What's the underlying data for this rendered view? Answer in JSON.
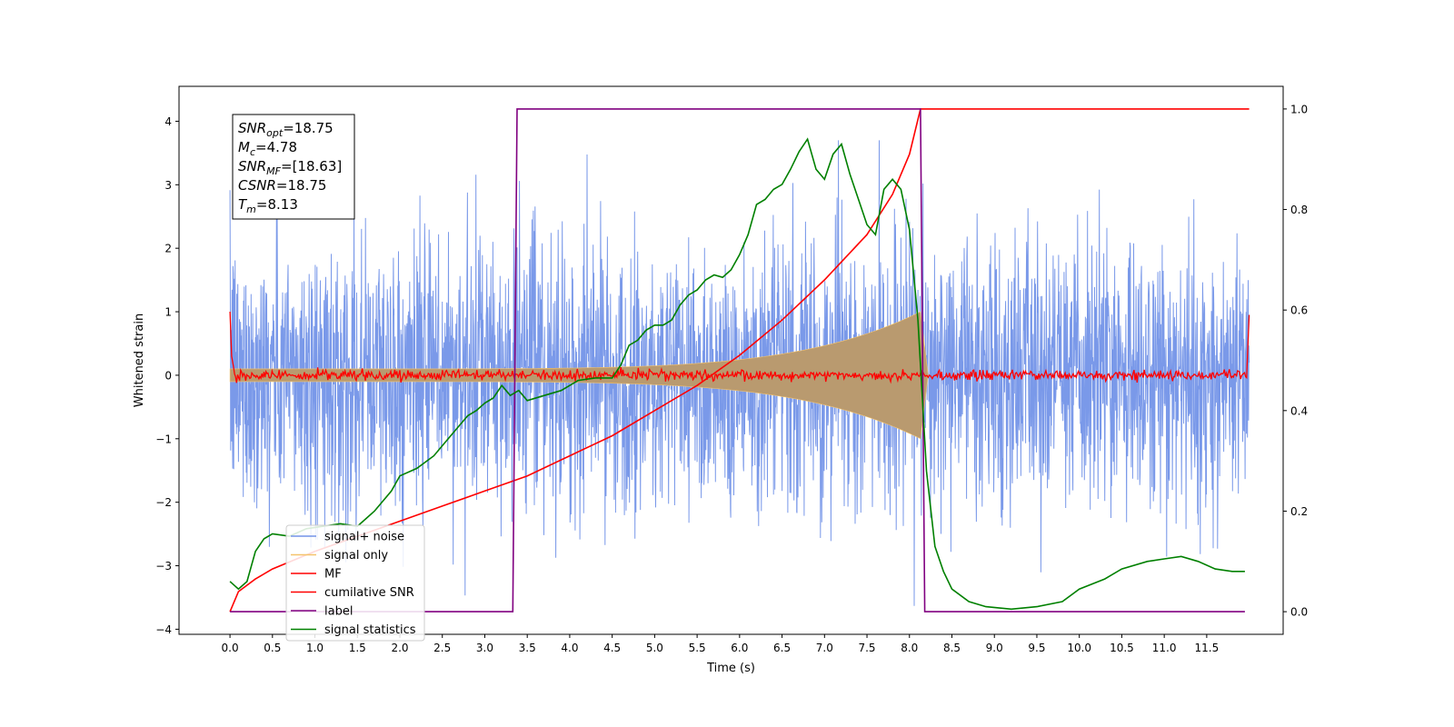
{
  "chart_data": {
    "type": "line",
    "title": "",
    "xlabel": "Time (s)",
    "ylabel": "Whitened strain",
    "xlim": [
      -0.6,
      12.4
    ],
    "ylim": [
      -4.08,
      4.55
    ],
    "y2lim": [
      -0.045,
      1.045
    ],
    "grid": false,
    "legend_position": "lower-left",
    "x_ticks": [
      0.0,
      0.5,
      1.0,
      1.5,
      2.0,
      2.5,
      3.0,
      3.5,
      4.0,
      4.5,
      5.0,
      5.5,
      6.0,
      6.5,
      7.0,
      7.5,
      8.0,
      8.5,
      9.0,
      9.5,
      10.0,
      10.5,
      11.0,
      11.5
    ],
    "x_tick_labels": [
      "0.0",
      "0.5",
      "1.0",
      "1.5",
      "2.0",
      "2.5",
      "3.0",
      "3.5",
      "4.0",
      "4.5",
      "5.0",
      "5.5",
      "6.0",
      "6.5",
      "7.0",
      "7.5",
      "8.0",
      "8.5",
      "9.0",
      "9.5",
      "10.0",
      "10.5",
      "11.0",
      "11.5"
    ],
    "y_ticks": [
      -4,
      -3,
      -2,
      -1,
      0,
      1,
      2,
      3,
      4
    ],
    "y_tick_labels": [
      "−4",
      "−3",
      "−2",
      "−1",
      "0",
      "1",
      "2",
      "3",
      "4"
    ],
    "y2_ticks": [
      0.0,
      0.2,
      0.4,
      0.6,
      0.8,
      1.0
    ],
    "y2_tick_labels": [
      "0.0",
      "0.2",
      "0.4",
      "0.6",
      "0.8",
      "1.0"
    ],
    "duration": 12.0,
    "merger_time": 8.13,
    "series": [
      {
        "name": "signal+ noise",
        "color": "#7393e8",
        "axis": "left",
        "values_summary": "dense whitened noise, roughly within ±2.5 with spikes reaching about ±3.7"
      },
      {
        "name": "signal only",
        "color": "#f5c36b",
        "axis": "left",
        "values_summary": "chirp envelope growing from about ±0.1 at 0 s to about ±1 near 8.1 s"
      },
      {
        "name": "MF",
        "color": "#ff0000",
        "axis": "left",
        "values_summary": "matched filter output near 0 (±0.1), edge values near 1.0 at 0 s and 12 s"
      },
      {
        "name": "cumilative SNR",
        "color": "#ff0000",
        "axis": "right",
        "x": [
          0.0,
          0.1,
          0.3,
          0.5,
          1.0,
          1.5,
          2.0,
          2.5,
          3.0,
          3.5,
          4.0,
          4.5,
          5.0,
          5.5,
          6.0,
          6.5,
          7.0,
          7.5,
          7.8,
          8.0,
          8.13,
          9.0,
          10.0,
          11.0,
          12.0
        ],
        "values": [
          0.0,
          0.04,
          0.065,
          0.085,
          0.12,
          0.15,
          0.18,
          0.21,
          0.24,
          0.27,
          0.31,
          0.35,
          0.4,
          0.45,
          0.51,
          0.58,
          0.66,
          0.75,
          0.83,
          0.91,
          1.0,
          1.0,
          1.0,
          1.0,
          1.0
        ]
      },
      {
        "name": "label",
        "color": "#800080",
        "axis": "right",
        "x": [
          0.0,
          3.33,
          3.38,
          8.13,
          8.18,
          11.95
        ],
        "values": [
          0.0,
          0.0,
          1.0,
          1.0,
          0.0,
          0.0
        ]
      },
      {
        "name": "signal statistics",
        "color": "#008000",
        "axis": "right",
        "x": [
          0.0,
          0.1,
          0.2,
          0.3,
          0.4,
          0.5,
          0.7,
          0.9,
          1.1,
          1.3,
          1.5,
          1.7,
          1.9,
          2.0,
          2.2,
          2.4,
          2.5,
          2.7,
          2.8,
          2.9,
          3.0,
          3.1,
          3.2,
          3.3,
          3.4,
          3.5,
          3.7,
          3.9,
          4.0,
          4.1,
          4.3,
          4.5,
          4.6,
          4.7,
          4.8,
          4.9,
          5.0,
          5.1,
          5.2,
          5.3,
          5.4,
          5.5,
          5.6,
          5.7,
          5.8,
          5.9,
          6.0,
          6.1,
          6.2,
          6.3,
          6.4,
          6.5,
          6.6,
          6.7,
          6.8,
          6.9,
          7.0,
          7.1,
          7.2,
          7.3,
          7.4,
          7.5,
          7.6,
          7.7,
          7.8,
          7.9,
          8.0,
          8.1,
          8.2,
          8.3,
          8.4,
          8.5,
          8.7,
          8.9,
          9.2,
          9.5,
          9.8,
          10.0,
          10.3,
          10.5,
          10.8,
          11.0,
          11.2,
          11.4,
          11.6,
          11.8,
          11.95
        ],
        "values": [
          0.06,
          0.045,
          0.06,
          0.12,
          0.145,
          0.155,
          0.15,
          0.165,
          0.17,
          0.175,
          0.17,
          0.2,
          0.24,
          0.27,
          0.285,
          0.31,
          0.33,
          0.37,
          0.39,
          0.4,
          0.415,
          0.425,
          0.45,
          0.43,
          0.44,
          0.42,
          0.43,
          0.44,
          0.45,
          0.46,
          0.465,
          0.465,
          0.49,
          0.53,
          0.54,
          0.56,
          0.57,
          0.57,
          0.58,
          0.61,
          0.63,
          0.64,
          0.66,
          0.67,
          0.665,
          0.68,
          0.71,
          0.75,
          0.81,
          0.82,
          0.84,
          0.85,
          0.88,
          0.915,
          0.94,
          0.88,
          0.86,
          0.91,
          0.93,
          0.87,
          0.82,
          0.77,
          0.75,
          0.84,
          0.86,
          0.84,
          0.76,
          0.58,
          0.28,
          0.13,
          0.08,
          0.045,
          0.02,
          0.01,
          0.005,
          0.01,
          0.02,
          0.045,
          0.065,
          0.085,
          0.1,
          0.105,
          0.11,
          0.1,
          0.085,
          0.08,
          0.08
        ]
      }
    ],
    "info_box": [
      {
        "sym": "SNR",
        "sub": "opt",
        "val": "=18.75"
      },
      {
        "sym": "M",
        "sub": "c",
        "val": "=4.78"
      },
      {
        "sym": "SNR",
        "sub": "MF",
        "val": "=[18.63]"
      },
      {
        "sym": "CSNR",
        "sub": "",
        "val": "=18.75"
      },
      {
        "sym": "T",
        "sub": "m",
        "val": "=8.13"
      }
    ]
  }
}
